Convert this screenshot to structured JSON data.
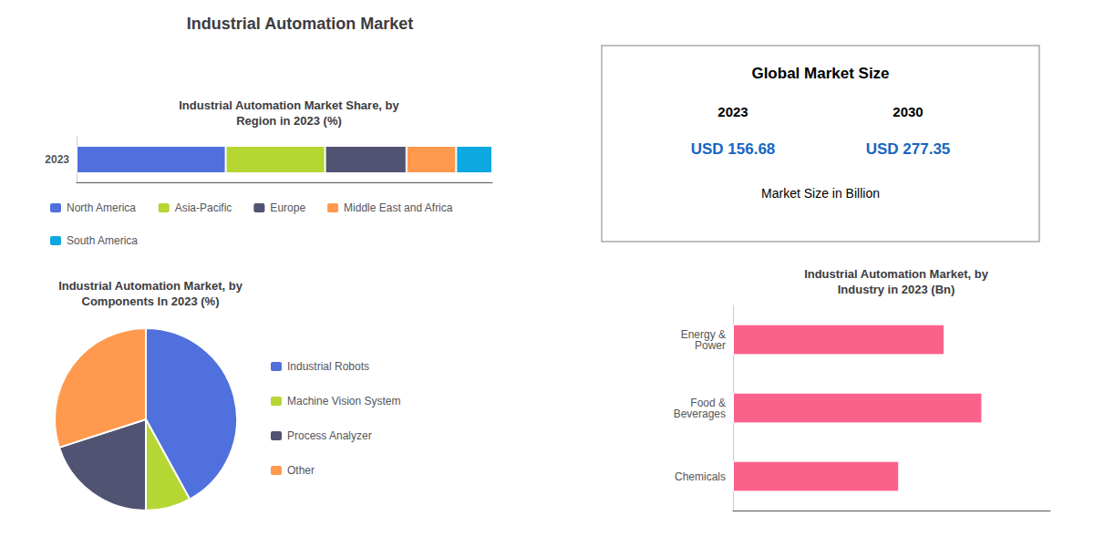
{
  "title": "Industrial Automation Market",
  "chart_data": [
    {
      "type": "bar",
      "title": "Industrial Automation Market Share, by\nRegion in 2023 (%)",
      "orientation": "horizontal",
      "stacked": true,
      "categories": [
        "2023"
      ],
      "series": [
        {
          "name": "North America",
          "values": [
            33
          ]
        },
        {
          "name": "Asia-Pacific",
          "values": [
            22
          ]
        },
        {
          "name": "Europe",
          "values": [
            18
          ]
        },
        {
          "name": "Middle East and Africa",
          "values": [
            11
          ]
        },
        {
          "name": "South America",
          "values": [
            8
          ]
        }
      ],
      "xlim": [
        0,
        92
      ],
      "tick_labels": "y",
      "grid": false,
      "legend": "bottom"
    },
    {
      "type": "text",
      "title": "Global Market Size",
      "annotations": [
        "2023",
        "2030",
        "USD 156.68",
        "USD 277.35",
        "Market Size in Billion"
      ],
      "color": "#1565C0"
    },
    {
      "type": "pie",
      "title": "Industrial Automation Market, by\nComponents In 2023 (%)",
      "categories": [
        "Industrial Robots",
        "Machine Vision System",
        "Process Analyzer",
        "Other"
      ],
      "values": [
        42,
        8,
        20,
        30
      ],
      "legend": "right"
    },
    {
      "type": "bar",
      "title": "Industrial Automation Market, by\nIndustry in 2023 (Bn)",
      "orientation": "horizontal",
      "categories": [
        "Energy &\nPower",
        "Food &\nBeverages",
        "Chemicals"
      ],
      "values": [
        28,
        33,
        22
      ],
      "xlim": [
        0,
        42
      ],
      "tick_labels": "y",
      "grid": false
    }
  ]
}
